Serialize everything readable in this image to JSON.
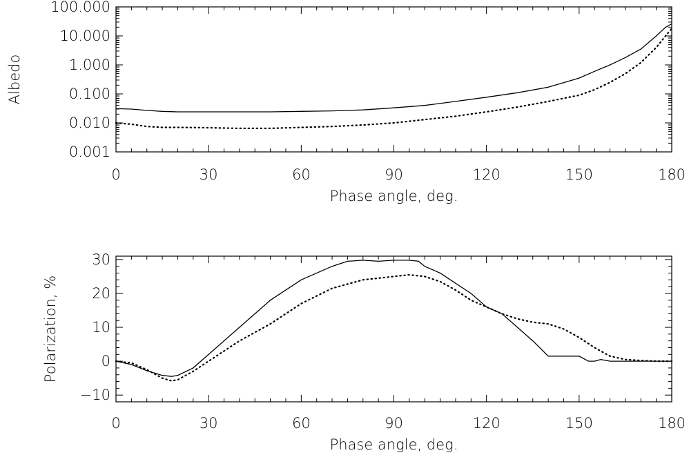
{
  "chart_data": [
    {
      "type": "line",
      "xlabel": "Phase angle, deg.",
      "ylabel": "Albedo",
      "xlim": [
        0,
        180
      ],
      "ylim": [
        0.001,
        100
      ],
      "yscale": "log",
      "xticks": [
        "0",
        "30",
        "60",
        "90",
        "120",
        "150",
        "180"
      ],
      "yticks": [
        "0.001",
        "0.010",
        "0.100",
        "1.000",
        "10.000",
        "100.000"
      ],
      "ytick_values": [
        0.001,
        0.01,
        0.1,
        1,
        10,
        100
      ],
      "series": [
        {
          "style": "solid",
          "x": [
            0,
            5,
            10,
            15,
            20,
            30,
            40,
            50,
            60,
            70,
            80,
            90,
            100,
            110,
            120,
            130,
            140,
            150,
            155,
            160,
            165,
            170,
            175,
            178,
            180
          ],
          "y": [
            0.031,
            0.03,
            0.027,
            0.025,
            0.024,
            0.024,
            0.024,
            0.024,
            0.025,
            0.026,
            0.028,
            0.033,
            0.04,
            0.055,
            0.077,
            0.11,
            0.17,
            0.35,
            0.6,
            1.0,
            1.8,
            3.5,
            10,
            20,
            26
          ]
        },
        {
          "style": "dotted",
          "x": [
            0,
            5,
            10,
            15,
            20,
            30,
            40,
            50,
            60,
            70,
            80,
            90,
            100,
            110,
            120,
            130,
            140,
            150,
            155,
            160,
            165,
            170,
            175,
            178,
            180
          ],
          "y": [
            0.01,
            0.009,
            0.0075,
            0.007,
            0.007,
            0.0068,
            0.0065,
            0.0065,
            0.007,
            0.0075,
            0.0085,
            0.01,
            0.013,
            0.017,
            0.024,
            0.035,
            0.055,
            0.09,
            0.14,
            0.25,
            0.5,
            1.2,
            4,
            10,
            18
          ]
        }
      ]
    },
    {
      "type": "line",
      "xlabel": "Phase angle, deg.",
      "ylabel": "Polarization, %",
      "xlim": [
        0,
        180
      ],
      "ylim": [
        -12,
        31
      ],
      "yscale": "linear",
      "xticks": [
        "0",
        "30",
        "60",
        "90",
        "120",
        "150",
        "180"
      ],
      "yticks": [
        "−10",
        "0",
        "10",
        "20",
        "30"
      ],
      "ytick_values": [
        -10,
        0,
        10,
        20,
        30
      ],
      "series": [
        {
          "style": "solid",
          "x": [
            0,
            5,
            10,
            15,
            18,
            20,
            25,
            30,
            40,
            50,
            60,
            70,
            75,
            80,
            85,
            90,
            95,
            98,
            100,
            105,
            110,
            115,
            120,
            125,
            130,
            135,
            140,
            145,
            150,
            153,
            155,
            157,
            160,
            165,
            170,
            175,
            180
          ],
          "y": [
            0,
            -1,
            -2.8,
            -4.2,
            -4.5,
            -4.2,
            -2,
            2,
            10,
            18,
            24,
            28,
            29.5,
            29.8,
            29.5,
            29.8,
            29.8,
            29.5,
            28,
            26,
            23,
            20,
            16,
            14,
            10,
            6,
            1.5,
            1.5,
            1.5,
            0,
            0,
            0.5,
            0,
            0,
            0,
            0,
            0
          ]
        },
        {
          "style": "dotted",
          "x": [
            0,
            5,
            10,
            15,
            18,
            20,
            25,
            30,
            40,
            50,
            60,
            70,
            80,
            85,
            90,
            95,
            100,
            105,
            110,
            115,
            120,
            125,
            130,
            135,
            140,
            145,
            150,
            155,
            160,
            165,
            170,
            175,
            180
          ],
          "y": [
            0,
            -0.5,
            -2.5,
            -5,
            -5.8,
            -5.5,
            -3,
            0,
            6,
            11,
            17,
            21.5,
            24,
            24.5,
            25,
            25.5,
            25,
            23.5,
            21,
            18,
            16,
            14,
            12.5,
            11.5,
            11,
            9.5,
            7,
            4,
            1.5,
            0.5,
            0.2,
            0,
            0
          ]
        }
      ]
    }
  ]
}
